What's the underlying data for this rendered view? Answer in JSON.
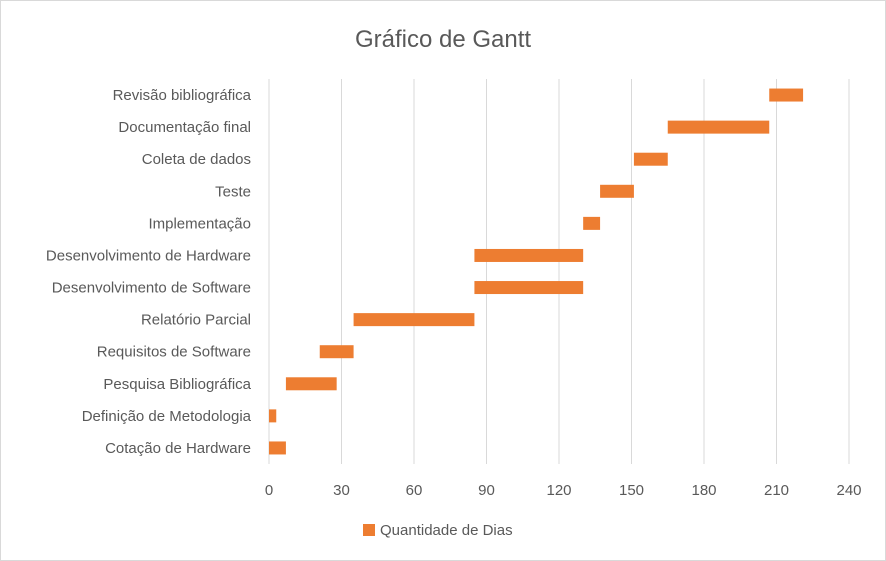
{
  "chart_data": {
    "type": "bar",
    "orientation": "horizontal",
    "stacked": true,
    "title": "Gráfico de Gantt",
    "xlabel": "",
    "ylabel": "",
    "xlim": [
      0,
      240
    ],
    "x_ticks": [
      0,
      30,
      60,
      90,
      120,
      150,
      180,
      210,
      240
    ],
    "x_tick_labels": [
      "0",
      "30",
      "60",
      "90",
      "120",
      "150",
      "180",
      "210",
      "240"
    ],
    "grid": "vertical major gridlines",
    "legend": {
      "position": "bottom",
      "entries": [
        "Quantidade de Dias"
      ]
    },
    "colors": {
      "bar": "#ed7d31",
      "grid": "#d9d9d9",
      "text": "#595959"
    },
    "categories": [
      "Cotação de Hardware",
      "Definição de Metodologia",
      "Pesquisa Bibliográfica",
      "Requisitos de Software",
      "Relatório Parcial",
      "Desenvolvimento de Software",
      "Desenvolvimento de Hardware",
      "Implementação",
      "Teste",
      "Coleta de dados",
      "Documentação final",
      "Revisão bibliográfica"
    ],
    "series": [
      {
        "role": "start offset (hidden)",
        "values": [
          0,
          0,
          7,
          21,
          35,
          85,
          85,
          130,
          137,
          151,
          165,
          207
        ]
      },
      {
        "name": "Quantidade de Dias",
        "values": [
          7,
          3,
          21,
          14,
          50,
          45,
          45,
          7,
          14,
          14,
          42,
          14
        ]
      }
    ]
  }
}
